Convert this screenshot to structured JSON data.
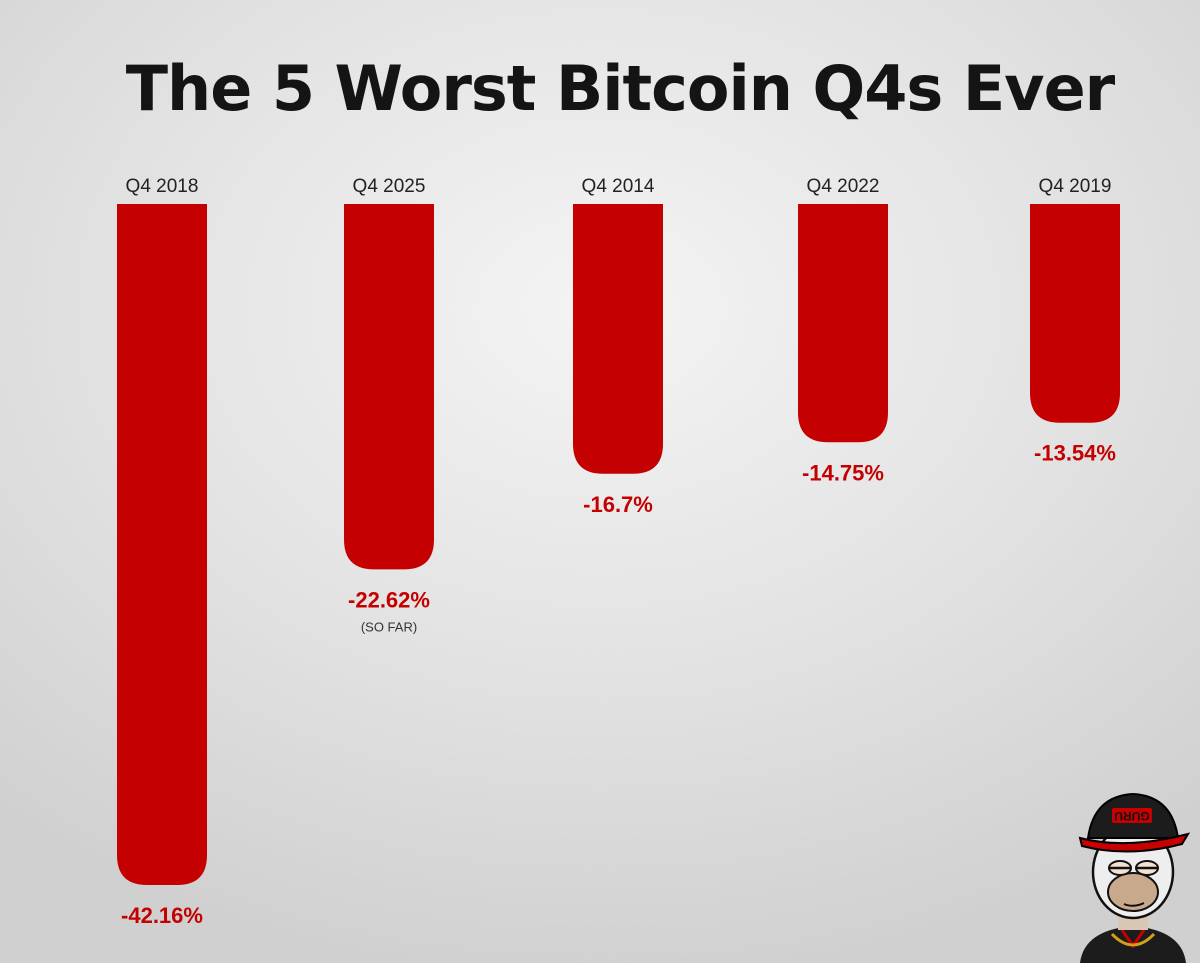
{
  "chart_data": {
    "type": "bar",
    "title": "The 5 Worst Bitcoin Q4s Ever",
    "categories": [
      "Q4 2018",
      "Q4 2025",
      "Q4 2014",
      "Q4 2022",
      "Q4 2019"
    ],
    "values": [
      -42.16,
      -22.62,
      -16.7,
      -14.75,
      -13.54
    ],
    "value_labels": [
      "-42.16%",
      "-22.62%",
      "-16.7%",
      "-14.75%",
      "-13.54%"
    ],
    "notes": [
      "",
      "(SO FAR)",
      "",
      "",
      ""
    ],
    "xlabel": "",
    "ylabel": "",
    "ylim": [
      -42.16,
      0
    ],
    "grid": false,
    "legend": "none",
    "bar_color": "#c40000",
    "label_color": "#c40000"
  },
  "avatar": {
    "cap_text": "GURU",
    "icon": "ape-avatar-icon"
  }
}
